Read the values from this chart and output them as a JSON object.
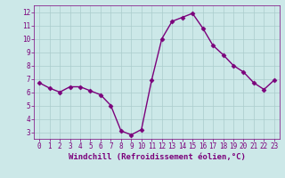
{
  "x": [
    0,
    1,
    2,
    3,
    4,
    5,
    6,
    7,
    8,
    9,
    10,
    11,
    12,
    13,
    14,
    15,
    16,
    17,
    18,
    19,
    20,
    21,
    22,
    23
  ],
  "y": [
    6.7,
    6.3,
    6.0,
    6.4,
    6.4,
    6.1,
    5.8,
    5.0,
    3.1,
    2.8,
    3.2,
    6.9,
    10.0,
    11.3,
    11.6,
    11.9,
    10.8,
    9.5,
    8.8,
    8.0,
    7.5,
    6.7,
    6.2,
    6.9
  ],
  "line_color": "#7B007B",
  "marker": "D",
  "marker_size": 2.5,
  "bg_color": "#cce8e8",
  "grid_color": "#aacccc",
  "xlabel": "Windchill (Refroidissement éolien,°C)",
  "ylabel": "",
  "xlim": [
    -0.5,
    23.5
  ],
  "ylim": [
    2.5,
    12.5
  ],
  "yticks": [
    3,
    4,
    5,
    6,
    7,
    8,
    9,
    10,
    11,
    12
  ],
  "xticks": [
    0,
    1,
    2,
    3,
    4,
    5,
    6,
    7,
    8,
    9,
    10,
    11,
    12,
    13,
    14,
    15,
    16,
    17,
    18,
    19,
    20,
    21,
    22,
    23
  ],
  "tick_color": "#7B007B",
  "label_color": "#7B007B",
  "tick_fontsize": 5.5,
  "xlabel_fontsize": 6.5,
  "linewidth": 1.0
}
